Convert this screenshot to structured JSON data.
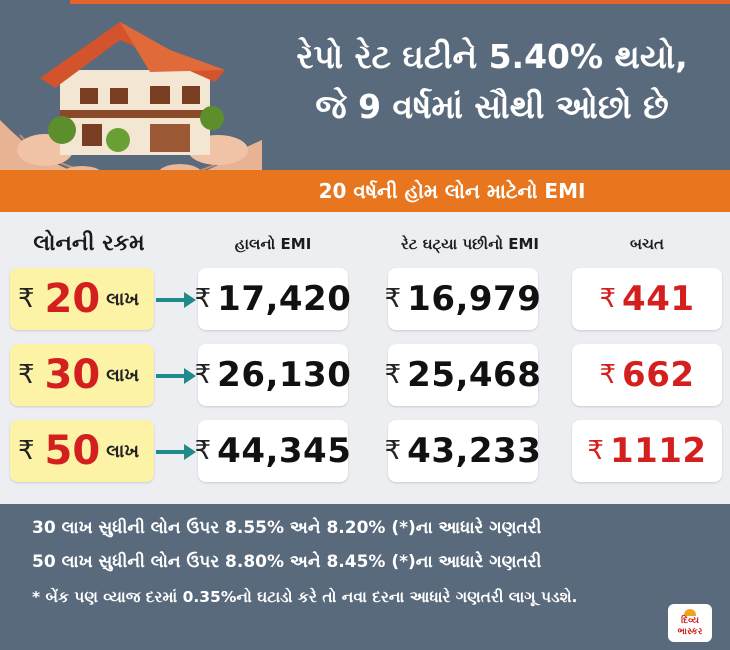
{
  "headline": {
    "line1": "રેપો રેટ ઘટીને 5.40% થયો,",
    "line2": "જે 9 વર્ષમાં સૌથી ઓછો છે"
  },
  "subtitle": "20 વર્ષની હોમ લોન માટેનો EMI",
  "columns": [
    "લોનની રકમ",
    "હાલનો EMI",
    "રેટ ઘટ્યા પછીનો EMI",
    "બચત"
  ],
  "currency_symbol": "₹",
  "rows": [
    {
      "loan_value": "20",
      "loan_unit": "લાખ",
      "current_emi": "17,420",
      "new_emi": "16,979",
      "saving": "441"
    },
    {
      "loan_value": "30",
      "loan_unit": "લાખ",
      "current_emi": "26,130",
      "new_emi": "25,468",
      "saving": "662"
    },
    {
      "loan_value": "50",
      "loan_unit": "લાખ",
      "current_emi": "44,345",
      "new_emi": "43,233",
      "saving": "1112"
    }
  ],
  "notes": [
    "30 લાખ સુધીની લોન ઉપર 8.55% અને 8.20% (*)ના આધારે ગણતરી",
    "50 લાખ સુધીની લોન ઉપર 8.80% અને 8.45% (*)ના આધારે ગણતરી",
    "* બેંક પણ વ્યાજ દરમાં 0.35%નો ઘટાડો કરે તો નવા દરના આધારે ગણતરી લાગૂ પડશે."
  ],
  "logo": {
    "line1": "દિવ્ય",
    "line2": "ભાસ્કર"
  },
  "colors": {
    "header": "#5a6a7d",
    "accent_orange": "#e8761e",
    "loan_highlight": "#fdf3a6",
    "red": "#d3201f",
    "arrow": "#1e8a8a"
  }
}
